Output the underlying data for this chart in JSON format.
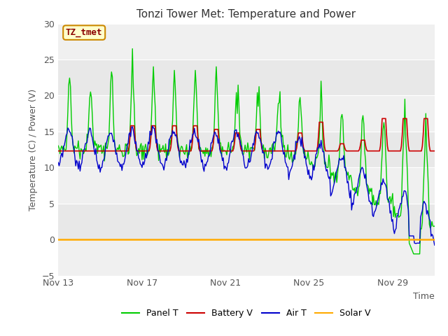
{
  "title": "Tonzi Tower Met: Temperature and Power",
  "ylabel": "Temperature (C) / Power (V)",
  "xlabel": "Time",
  "ylim": [
    -5,
    30
  ],
  "yticks": [
    -5,
    0,
    5,
    10,
    15,
    20,
    25,
    30
  ],
  "xtick_labels": [
    "Nov 13",
    "Nov 17",
    "Nov 21",
    "Nov 25",
    "Nov 29"
  ],
  "xtick_positions": [
    0,
    4,
    8,
    12,
    16
  ],
  "annotation": "TZ_tmet",
  "plot_bg_color": "#e8e8e8",
  "fig_color": "#ffffff",
  "band_color": "#f0f0f0",
  "grid_color": "#ffffff",
  "line_colors": {
    "panel": "#00cc00",
    "battery": "#cc0000",
    "air": "#0000cc",
    "solar": "#ffaa00"
  },
  "legend_labels": [
    "Panel T",
    "Battery V",
    "Air T",
    "Solar V"
  ],
  "title_fontsize": 11,
  "axis_fontsize": 9,
  "tick_fontsize": 9,
  "tick_color": "#555555",
  "n_days": 18
}
